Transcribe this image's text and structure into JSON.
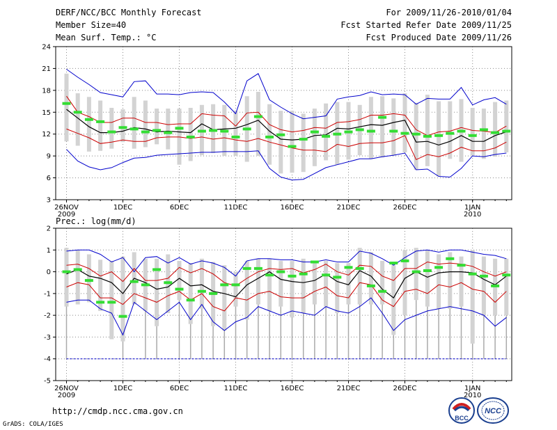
{
  "header": {
    "title": "DERF/NCC/BCC Monthly Forecast",
    "member": "Member Size=40",
    "variable": "Mean Surf. Temp.: °C",
    "period": "For 2009/11/26-2010/01/04",
    "refer": "Fcst Started Refer Date 2009/11/25",
    "produced": "Fcst Produced Date 2009/11/26"
  },
  "footer": {
    "url": "http://cmdp.ncc.cma.gov.cn",
    "grads": "GrADS: COLA/IGES",
    "logo_bcc": "BCC",
    "logo_ncc": "NCC"
  },
  "colors": {
    "envelope": "#0000cc",
    "spread": "#cc0000",
    "mean": "#000000",
    "box": "#d3d3d3",
    "median": "#33dd33",
    "grid": "#888888"
  },
  "chart_data": [
    {
      "type": "box-line",
      "title": "Mean Surf. Temp.: °C",
      "ylim": [
        3,
        24
      ],
      "yticks": [
        3,
        6,
        9,
        12,
        15,
        18,
        21,
        24
      ],
      "xticks": [
        {
          "day": 0,
          "label": "26NOV",
          "sub": "2009"
        },
        {
          "day": 5,
          "label": "1DEC"
        },
        {
          "day": 10,
          "label": "6DEC"
        },
        {
          "day": 15,
          "label": "11DEC"
        },
        {
          "day": 20,
          "label": "16DEC"
        },
        {
          "day": 25,
          "label": "21DEC"
        },
        {
          "day": 30,
          "label": "26DEC"
        },
        {
          "day": 36,
          "label": "1JAN",
          "sub": "2010"
        }
      ],
      "days": 40,
      "max": [
        20.9,
        19.8,
        18.8,
        17.7,
        17.4,
        17.1,
        19.2,
        19.3,
        17.5,
        17.5,
        17.4,
        17.7,
        17.8,
        17.7,
        16.4,
        14.8,
        19.3,
        20.3,
        16.7,
        15.7,
        14.8,
        14.1,
        14.3,
        14.5,
        16.8,
        17.1,
        17.3,
        17.8,
        17.4,
        17.5,
        17.4,
        16.1,
        16.9,
        16.8,
        16.8,
        18.4,
        16.0,
        16.7,
        17.0,
        16.1
      ],
      "upper": [
        17.2,
        15.0,
        14.4,
        13.6,
        13.6,
        14.2,
        14.2,
        13.6,
        13.6,
        13.3,
        13.4,
        13.4,
        14.8,
        14.6,
        14.5,
        13.1,
        14.9,
        15.0,
        13.3,
        12.6,
        12.3,
        12.5,
        12.9,
        12.8,
        13.6,
        13.7,
        14.0,
        14.6,
        14.6,
        14.8,
        14.6,
        12.6,
        11.8,
        12.3,
        12.4,
        12.9,
        12.5,
        12.4,
        12.2,
        13.1
      ],
      "mean": [
        15.4,
        14.2,
        13.0,
        12.2,
        12.2,
        12.4,
        12.9,
        12.7,
        12.3,
        12.4,
        12.3,
        12.2,
        13.4,
        12.6,
        12.7,
        12.8,
        13.3,
        13.9,
        12.4,
        11.3,
        11.2,
        11.3,
        11.8,
        11.9,
        12.8,
        12.7,
        13.0,
        13.3,
        13.2,
        13.6,
        13.9,
        10.9,
        11.0,
        10.5,
        11.0,
        11.8,
        11.0,
        11.0,
        11.8,
        12.3
      ],
      "lower": [
        12.7,
        12.1,
        11.5,
        10.7,
        10.9,
        11.2,
        11.0,
        11.0,
        11.5,
        11.6,
        11.6,
        11.4,
        11.6,
        11.3,
        11.5,
        11.2,
        11.0,
        11.4,
        10.9,
        10.5,
        10.1,
        9.8,
        9.8,
        9.6,
        10.6,
        10.3,
        10.7,
        10.8,
        10.8,
        11.1,
        11.8,
        8.5,
        9.2,
        8.9,
        9.4,
        10.2,
        9.7,
        9.7,
        10.1,
        10.9
      ],
      "min": [
        9.9,
        8.3,
        7.5,
        7.1,
        7.4,
        8.1,
        8.7,
        8.8,
        9.1,
        9.2,
        9.3,
        9.4,
        9.5,
        9.5,
        9.6,
        9.6,
        9.6,
        9.7,
        7.3,
        6.1,
        5.7,
        5.8,
        6.6,
        7.4,
        7.8,
        8.2,
        8.6,
        8.6,
        8.9,
        9.1,
        9.4,
        7.1,
        7.2,
        6.2,
        6.1,
        7.3,
        9.0,
        8.9,
        9.2,
        9.4
      ],
      "box_hi": [
        20.3,
        17.6,
        17.1,
        16.6,
        15.6,
        15.4,
        17.1,
        16.6,
        15.5,
        15.5,
        15.5,
        15.6,
        16.0,
        16.1,
        16.0,
        15.2,
        17.2,
        17.8,
        16.1,
        15.2,
        15.2,
        14.8,
        15.5,
        16.2,
        16.4,
        16.4,
        16.0,
        17.1,
        17.2,
        16.9,
        17.6,
        16.3,
        17.4,
        16.5,
        16.5,
        16.8,
        15.6,
        15.5,
        16.4,
        16.6
      ],
      "box_lo": [
        11.0,
        10.4,
        9.6,
        9.7,
        10.0,
        10.9,
        10.0,
        10.2,
        10.6,
        9.9,
        7.8,
        8.3,
        9.1,
        9.4,
        9.0,
        9.0,
        8.2,
        9.0,
        7.8,
        6.6,
        6.7,
        6.8,
        7.6,
        8.4,
        7.8,
        8.5,
        9.1,
        8.6,
        8.8,
        9.1,
        9.5,
        7.1,
        7.6,
        6.2,
        8.6,
        8.2,
        9.1,
        8.6,
        8.9,
        9.5
      ],
      "median": [
        16.2,
        15.0,
        14.0,
        13.7,
        12.3,
        12.9,
        12.7,
        12.3,
        12.5,
        12.2,
        12.8,
        11.6,
        12.4,
        12.5,
        12.4,
        11.6,
        12.7,
        14.4,
        11.6,
        11.9,
        10.3,
        11.3,
        12.3,
        11.7,
        12.0,
        12.3,
        12.6,
        12.4,
        14.3,
        12.4,
        12.1,
        12.0,
        11.7,
        11.8,
        12.1,
        12.4,
        11.8,
        12.6,
        12.2,
        12.4
      ]
    },
    {
      "type": "box-line",
      "title": "Prec.: log(mm/d)",
      "ylim": [
        -5,
        2
      ],
      "yticks": [
        -5,
        -4,
        -3,
        -2,
        -1,
        0,
        1,
        2
      ],
      "xticks": [
        {
          "day": 0,
          "label": "26NOV",
          "sub": "2009"
        },
        {
          "day": 5,
          "label": "1DEC"
        },
        {
          "day": 10,
          "label": "6DEC"
        },
        {
          "day": 15,
          "label": "11DEC"
        },
        {
          "day": 20,
          "label": "16DEC"
        },
        {
          "day": 25,
          "label": "21DEC"
        },
        {
          "day": 30,
          "label": "26DEC"
        },
        {
          "day": 36,
          "label": "1JAN",
          "sub": "2010"
        }
      ],
      "days": 40,
      "max": [
        0.95,
        1.0,
        1.0,
        0.8,
        0.45,
        0.65,
        0.0,
        0.65,
        0.7,
        0.4,
        0.65,
        0.35,
        0.5,
        0.4,
        0.2,
        -0.2,
        0.5,
        0.6,
        0.6,
        0.55,
        0.55,
        0.45,
        0.45,
        0.55,
        0.45,
        0.45,
        0.95,
        0.85,
        0.6,
        0.3,
        0.65,
        0.95,
        1.0,
        0.9,
        1.0,
        1.0,
        0.9,
        0.8,
        0.75,
        0.6
      ],
      "upper": [
        0.3,
        0.35,
        0.15,
        -0.2,
        0.0,
        -0.45,
        0.15,
        -0.4,
        -0.4,
        -0.3,
        0.2,
        -0.05,
        0.15,
        -0.1,
        -0.5,
        -0.65,
        -0.3,
        0.0,
        0.15,
        0.1,
        0.15,
        -0.05,
        0.1,
        0.35,
        0.0,
        -0.15,
        0.3,
        0.25,
        -0.2,
        -0.4,
        0.15,
        0.15,
        0.45,
        0.35,
        0.4,
        0.35,
        0.25,
        0.0,
        -0.2,
        0.0
      ],
      "mean": [
        -0.1,
        0.1,
        -0.2,
        -0.3,
        -0.5,
        -1.0,
        -0.3,
        -0.5,
        -0.8,
        -0.7,
        -0.3,
        -0.65,
        -0.6,
        -0.9,
        -1.0,
        -1.15,
        -0.6,
        -0.3,
        0.0,
        -0.35,
        -0.45,
        -0.5,
        -0.4,
        -0.1,
        -0.45,
        -0.6,
        0.05,
        -0.2,
        -0.8,
        -1.2,
        -0.3,
        0.0,
        -0.25,
        -0.05,
        0.0,
        0.0,
        -0.05,
        -0.35,
        -0.6,
        -0.2
      ],
      "lower": [
        -0.7,
        -0.5,
        -0.6,
        -1.2,
        -1.2,
        -1.5,
        -1.0,
        -1.2,
        -1.4,
        -1.1,
        -0.9,
        -1.3,
        -1.0,
        -1.6,
        -1.8,
        -1.2,
        -1.3,
        -1.0,
        -0.9,
        -1.15,
        -1.2,
        -1.2,
        -0.9,
        -0.7,
        -1.1,
        -1.2,
        -0.5,
        -0.6,
        -1.3,
        -1.6,
        -0.9,
        -0.8,
        -1.0,
        -0.6,
        -0.7,
        -0.5,
        -0.8,
        -0.9,
        -1.4,
        -0.9
      ],
      "min": [
        -1.4,
        -1.3,
        -1.3,
        -1.7,
        -1.9,
        -2.9,
        -1.4,
        -1.8,
        -2.2,
        -1.8,
        -1.4,
        -2.2,
        -1.5,
        -2.3,
        -2.7,
        -2.3,
        -2.1,
        -1.6,
        -1.8,
        -2.0,
        -1.8,
        -1.9,
        -2.0,
        -1.6,
        -1.8,
        -1.9,
        -1.6,
        -1.2,
        -1.9,
        -2.7,
        -2.2,
        -2.0,
        -1.8,
        -1.7,
        -1.6,
        -1.7,
        -1.8,
        -2.0,
        -2.5,
        -2.1
      ],
      "box_hi": [
        1.1,
        1.0,
        0.8,
        0.55,
        0.5,
        0.7,
        0.9,
        0.6,
        0.6,
        0.8,
        0.5,
        0.4,
        0.6,
        0.45,
        0.3,
        0.0,
        0.5,
        0.6,
        0.6,
        0.5,
        0.5,
        0.6,
        0.5,
        0.5,
        0.4,
        0.4,
        1.1,
        0.9,
        0.5,
        0.3,
        1.0,
        1.1,
        1.0,
        0.8,
        0.9,
        0.7,
        1.0,
        0.7,
        0.6,
        0.6
      ],
      "box_lo": [
        -1.6,
        -1.5,
        -1.4,
        -1.8,
        -3.1,
        -3.2,
        -1.5,
        -1.8,
        -2.5,
        -1.9,
        -1.3,
        -2.4,
        -1.7,
        -2.5,
        -2.7,
        -1.6,
        -2.2,
        -1.5,
        -1.8,
        -1.6,
        -2.1,
        -1.9,
        -1.5,
        -1.6,
        -1.9,
        -1.5,
        -1.5,
        -1.5,
        -1.5,
        -2.9,
        -2.0,
        -1.3,
        -1.6,
        -1.7,
        -1.7,
        -1.6,
        -3.3,
        -2.0,
        -2.0,
        -2.0
      ],
      "median": [
        0.0,
        0.1,
        -0.4,
        -1.4,
        -1.4,
        -2.05,
        -0.45,
        -0.6,
        0.1,
        -0.5,
        -0.8,
        -1.3,
        -0.9,
        -1.0,
        -0.6,
        -0.6,
        0.15,
        0.15,
        -0.15,
        0.0,
        -0.2,
        -0.1,
        0.45,
        -0.15,
        -0.25,
        0.2,
        0.15,
        -0.65,
        -0.9,
        0.4,
        0.5,
        0.0,
        0.05,
        0.2,
        0.6,
        0.3,
        -0.1,
        -0.2,
        -0.65,
        -0.15
      ],
      "floor": -4,
      "whisker_floor_days": [
        0,
        5,
        7,
        8,
        10,
        11,
        12,
        13,
        14,
        15,
        16,
        17,
        18,
        19,
        20,
        21,
        22,
        23,
        24,
        25,
        26,
        27,
        28,
        29,
        30,
        31,
        32,
        33,
        34,
        35,
        36,
        37,
        38,
        39
      ]
    }
  ]
}
